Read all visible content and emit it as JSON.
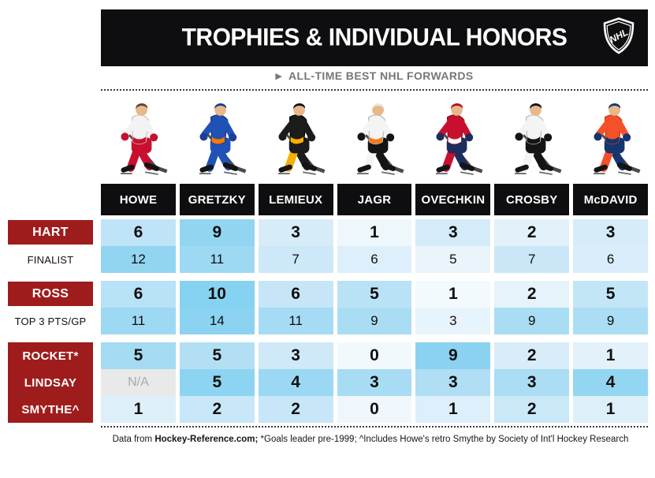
{
  "header": {
    "title": "TROPHIES & INDIVIDUAL HONORS",
    "logo_icon": "nhl-shield-logo"
  },
  "subtitle": {
    "arrow": "▶",
    "text": "ALL-TIME BEST NHL FORWARDS"
  },
  "columns": [
    "HOWE",
    "GRETZKY",
    "LEMIEUX",
    "JAGR",
    "OVECHKIN",
    "CROSBY",
    "McDAVID"
  ],
  "players": [
    {
      "name": "Howe",
      "helmet": "#5a4632",
      "jersey": "#f3f3f3",
      "accent": "#c8102e",
      "pants": "#c8102e",
      "socks": "#c8102e",
      "gloves": "#c8102e",
      "outline": "#c9c9c9"
    },
    {
      "name": "Gretzky",
      "helmet": "#1b3f94",
      "jersey": "#2051b5",
      "accent": "#ff7900",
      "pants": "#2051b5",
      "socks": "#2051b5",
      "gloves": "#1b3f94",
      "outline": "#16357d"
    },
    {
      "name": "Lemieux",
      "helmet": "#141414",
      "jersey": "#1c1c1c",
      "accent": "#f5b000",
      "pants": "#1c1c1c",
      "socks": "#f5b000",
      "gloves": "#1c1c1c",
      "outline": "#000000"
    },
    {
      "name": "Jagr",
      "helmet": "#e9e9e9",
      "jersey": "#f4f4f4",
      "accent": "#f47a20",
      "pants": "#141414",
      "socks": "#f4f4f4",
      "gloves": "#141414",
      "outline": "#bdbdbd"
    },
    {
      "name": "Ovechkin",
      "helmet": "#b5121b",
      "jersey": "#c8102e",
      "accent": "#ffffff",
      "pants": "#1d2d5c",
      "socks": "#c8102e",
      "gloves": "#1d2d5c",
      "outline": "#8e0c20"
    },
    {
      "name": "Crosby",
      "helmet": "#141414",
      "jersey": "#f4f4f4",
      "accent": "#141414",
      "pants": "#141414",
      "socks": "#f4f4f4",
      "gloves": "#141414",
      "outline": "#bdbdbd"
    },
    {
      "name": "McDavid",
      "helmet": "#14356f",
      "jersey": "#f4502a",
      "accent": "#14356f",
      "pants": "#14356f",
      "socks": "#f4502a",
      "gloves": "#14356f",
      "outline": "#c23c1c"
    }
  ],
  "chart_data": {
    "type": "table",
    "title": "TROPHIES & INDIVIDUAL HONORS",
    "subtitle": "ALL-TIME BEST NHL FORWARDS",
    "columns": [
      "HOWE",
      "GRETZKY",
      "LEMIEUX",
      "JAGR",
      "OVECHKIN",
      "CROSBY",
      "McDAVID"
    ],
    "legend": "cell shading: darker blue = higher count",
    "row_groups": [
      {
        "merged_label": false,
        "rows": [
          {
            "label": "HART",
            "label_style": "red",
            "bold": true,
            "values": [
              6,
              9,
              3,
              1,
              3,
              2,
              3
            ],
            "colors": [
              "#bfe4f7",
              "#92d5f1",
              "#d7ecf9",
              "#eef7fc",
              "#d4ebf9",
              "#e2f1fa",
              "#d6ecf9"
            ]
          },
          {
            "label": "FINALIST",
            "label_style": "plain",
            "bold": false,
            "values": [
              12,
              11,
              7,
              6,
              5,
              7,
              6
            ],
            "colors": [
              "#92d5f1",
              "#9ed9f3",
              "#cde8f8",
              "#ddeffa",
              "#e9f4fb",
              "#cbe7f7",
              "#d9eefa"
            ]
          }
        ]
      },
      {
        "merged_label": false,
        "rows": [
          {
            "label": "ROSS",
            "label_style": "red",
            "bold": true,
            "values": [
              6,
              10,
              6,
              5,
              1,
              2,
              5
            ],
            "colors": [
              "#b8e2f6",
              "#85d2f1",
              "#c6e6f7",
              "#b9e2f6",
              "#f3fafd",
              "#e6f3fb",
              "#c3e6f7"
            ]
          },
          {
            "label": "TOP 3 PTS/GP",
            "label_style": "plain",
            "bold": false,
            "values": [
              11,
              14,
              11,
              9,
              3,
              9,
              9
            ],
            "colors": [
              "#9ed9f3",
              "#8bd3f1",
              "#a5dbf4",
              "#a9ddf4",
              "#e8f4fb",
              "#a9ddf4",
              "#abdef4"
            ]
          }
        ]
      },
      {
        "merged_label": true,
        "rows": [
          {
            "label": "ROCKET*",
            "label_style": "red",
            "bold": true,
            "values": [
              5,
              5,
              3,
              0,
              9,
              2,
              1
            ],
            "colors": [
              "#a5daf3",
              "#b3dff5",
              "#cfe9f8",
              "#f2f9fd",
              "#8ad2f0",
              "#d8edf9",
              "#e3f1fa"
            ]
          },
          {
            "label": "LINDSAY",
            "label_style": "red",
            "bold": true,
            "values": [
              "N/A",
              5,
              4,
              3,
              3,
              3,
              4
            ],
            "colors": [
              "#e9e9e9",
              "#8cd4f1",
              "#9bd8f3",
              "#a8dcf4",
              "#b0def5",
              "#abddf4",
              "#93d6f2"
            ]
          },
          {
            "label": "SMYTHE^",
            "label_style": "red",
            "bold": true,
            "values": [
              1,
              2,
              2,
              0,
              1,
              2,
              1
            ],
            "colors": [
              "#ddf0fa",
              "#c8e7f8",
              "#c7e7f8",
              "#f0f7fc",
              "#dceffa",
              "#c9e8f8",
              "#ddf0fa"
            ]
          }
        ]
      }
    ]
  },
  "footer": {
    "prefix": "Data from ",
    "bold": "Hockey-Reference.com;",
    "rest": " *Goals leader pre-1999; ^Includes Howe's retro Smythe by Society of Int'l Hockey Research"
  },
  "colors": {
    "accent_red": "#9e1d1c",
    "header_black": "#0e0e10",
    "subtitle_gray": "#76777a",
    "na_bg": "#e9e9e9",
    "na_text": "#a7abaf",
    "scale_low": "#f3fafd",
    "scale_high": "#85d2f1"
  }
}
